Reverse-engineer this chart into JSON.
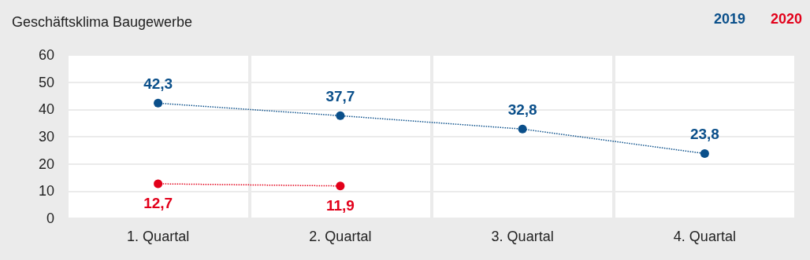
{
  "chart_data": {
    "type": "line",
    "title": "Geschäftsklima Baugewerbe",
    "categories": [
      "1. Quartal",
      "2. Quartal",
      "3. Quartal",
      "4. Quartal"
    ],
    "series": [
      {
        "name": "2019",
        "color": "#0a4f8a",
        "values": [
          42.3,
          37.7,
          32.8,
          23.8
        ],
        "value_labels": [
          "42,3",
          "37,7",
          "32,8",
          "23,8"
        ]
      },
      {
        "name": "2020",
        "color": "#e2001a",
        "values": [
          12.7,
          11.9,
          null,
          null
        ],
        "value_labels": [
          "12,7",
          "11,9",
          null,
          null
        ]
      }
    ],
    "ylim": [
      0,
      60
    ],
    "yticks": [
      0,
      10,
      20,
      30,
      40,
      50,
      60
    ],
    "grid": true,
    "legend": "top right",
    "marker": "circle",
    "line_style": "dotted"
  }
}
